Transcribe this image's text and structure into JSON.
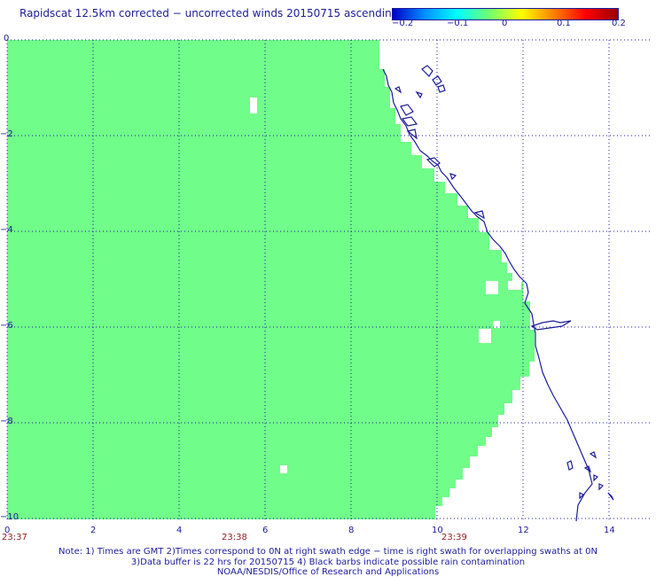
{
  "title": "Rapidscat 12.5km corrected − uncorrected winds 20150715 ascending",
  "colorbar": {
    "ticks": [
      "−0.2",
      "−0.1",
      "0",
      "0.1",
      "0.2"
    ],
    "stops": [
      "#0000c8",
      "#0090ff",
      "#00ffff",
      "#70ff70",
      "#ffff00",
      "#ff8000",
      "#ff0000",
      "#960000"
    ]
  },
  "axes": {
    "y_ticks": [
      "0",
      "−2",
      "−4",
      "−6",
      "−8",
      "−10"
    ],
    "x_ticks": [
      "0",
      "2",
      "4",
      "6",
      "8",
      "10",
      "12",
      "14"
    ],
    "times": [
      "23:37",
      "23:38",
      "23:39"
    ],
    "grid": true
  },
  "colors": {
    "swath_fill": "#70fd89",
    "coast": "#1c1c9a",
    "grid": "#1c1c9a",
    "time_label": "#8a1a1a"
  },
  "notes": [
    "Note: 1) Times are GMT 2)Times correspond to 0N at right swath edge − time is right swath for overlapping swaths at 0N",
    "3)Data buffer is 22 hrs for 20150715 4) Black barbs indicate possible rain contamination",
    "NOAA/NESDIS/Office of Research and Applications"
  ]
}
